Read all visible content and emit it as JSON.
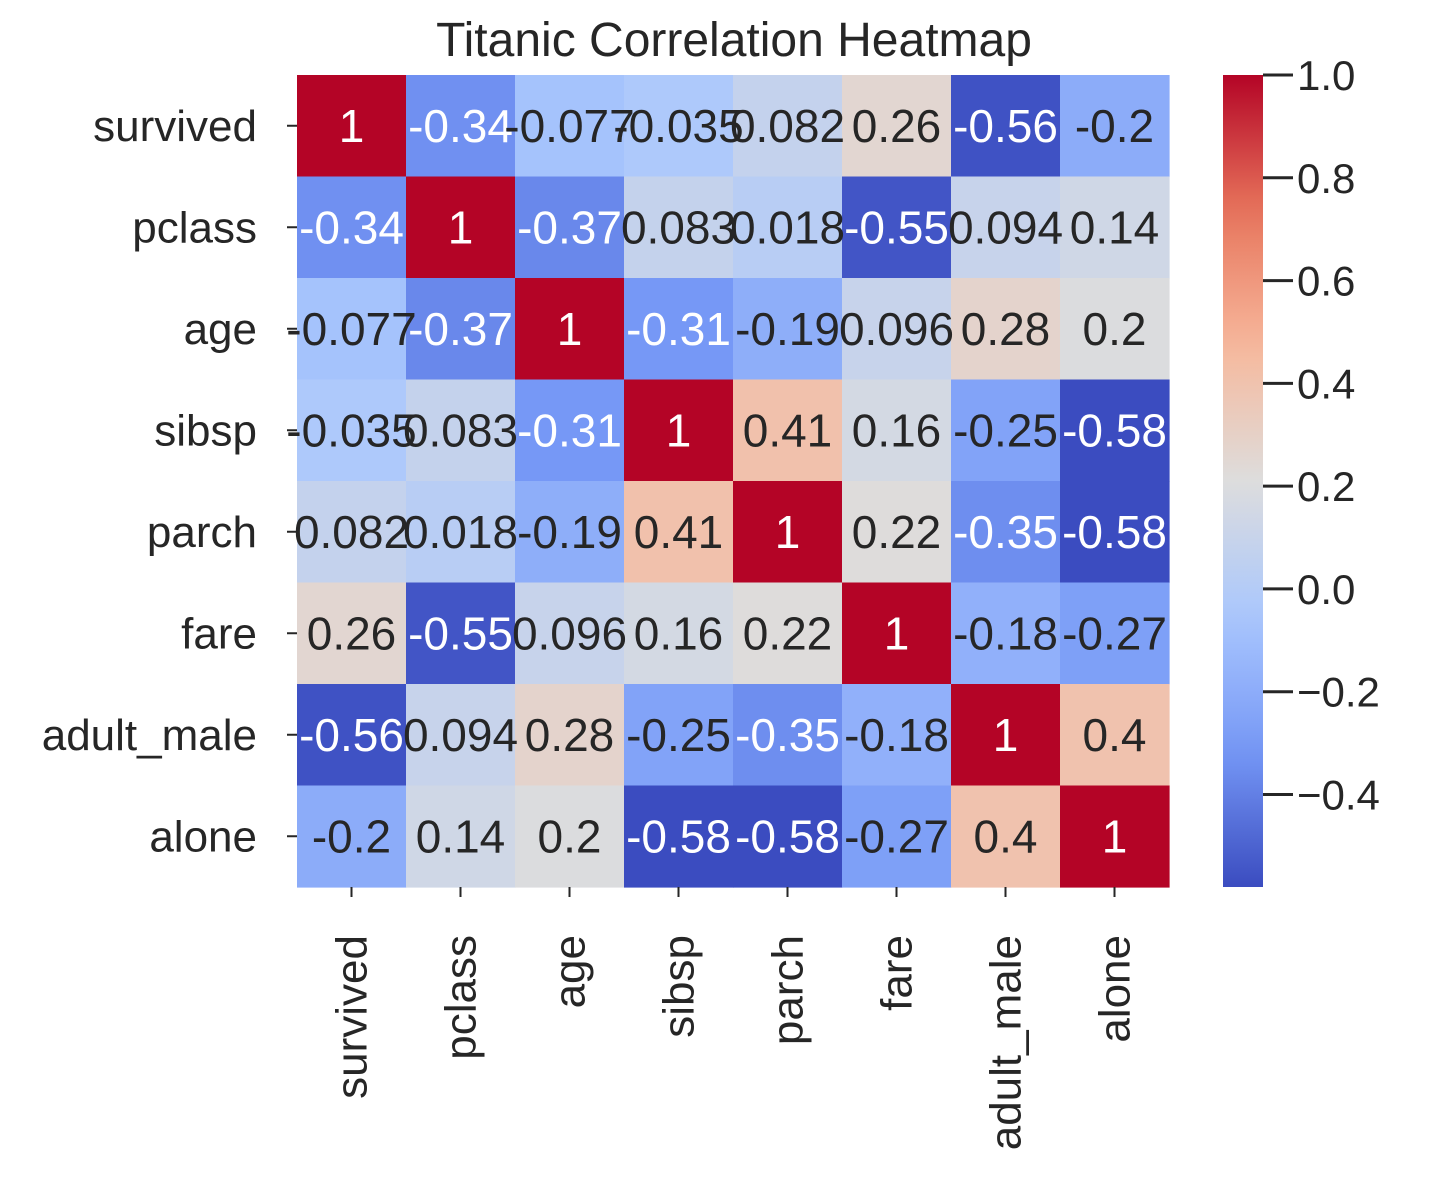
{
  "chart_data": {
    "type": "heatmap",
    "title": "Titanic Correlation Heatmap",
    "xlabel": "",
    "ylabel": "",
    "row_labels": [
      "survived",
      "pclass",
      "age",
      "sibsp",
      "parch",
      "fare",
      "adult_male",
      "alone"
    ],
    "col_labels": [
      "survived",
      "pclass",
      "age",
      "sibsp",
      "parch",
      "fare",
      "adult_male",
      "alone"
    ],
    "values": [
      [
        1,
        -0.34,
        -0.077,
        -0.035,
        0.082,
        0.26,
        -0.56,
        -0.2
      ],
      [
        -0.34,
        1,
        -0.37,
        0.083,
        0.018,
        -0.55,
        0.094,
        0.14
      ],
      [
        -0.077,
        -0.37,
        1,
        -0.31,
        -0.19,
        0.096,
        0.28,
        0.2
      ],
      [
        -0.035,
        0.083,
        -0.31,
        1,
        0.41,
        0.16,
        -0.25,
        -0.58
      ],
      [
        0.082,
        0.018,
        -0.19,
        0.41,
        1,
        0.22,
        -0.35,
        -0.58
      ],
      [
        0.26,
        -0.55,
        0.096,
        0.16,
        0.22,
        1,
        -0.18,
        -0.27
      ],
      [
        -0.56,
        0.094,
        0.28,
        -0.25,
        -0.35,
        -0.18,
        1,
        0.4
      ],
      [
        -0.2,
        0.14,
        0.2,
        -0.58,
        -0.58,
        -0.27,
        0.4,
        1
      ]
    ],
    "annotations": [
      [
        "1",
        "-0.34",
        "-0.077",
        "-0.035",
        "0.082",
        "0.26",
        "-0.56",
        "-0.2"
      ],
      [
        "-0.34",
        "1",
        "-0.37",
        "0.083",
        "0.018",
        "-0.55",
        "0.094",
        "0.14"
      ],
      [
        "-0.077",
        "-0.37",
        "1",
        "-0.31",
        "-0.19",
        "0.096",
        "0.28",
        "0.2"
      ],
      [
        "-0.035",
        "0.083",
        "-0.31",
        "1",
        "0.41",
        "0.16",
        "-0.25",
        "-0.58"
      ],
      [
        "0.082",
        "0.018",
        "-0.19",
        "0.41",
        "1",
        "0.22",
        "-0.35",
        "-0.58"
      ],
      [
        "0.26",
        "-0.55",
        "0.096",
        "0.16",
        "0.22",
        "1",
        "-0.18",
        "-0.27"
      ],
      [
        "-0.56",
        "0.094",
        "0.28",
        "-0.25",
        "-0.35",
        "-0.18",
        "1",
        "0.4"
      ],
      [
        "-0.2",
        "0.14",
        "0.2",
        "-0.58",
        "-0.58",
        "-0.27",
        "0.4",
        "1"
      ]
    ],
    "colormap": "coolwarm",
    "colormap_stops": [
      "#3b4cc0",
      "#7597f6",
      "#aac7fd",
      "#dddddd",
      "#f7b89c",
      "#e7745b",
      "#b40426"
    ],
    "vmin": -0.58,
    "vmax": 1.0,
    "colorbar": {
      "ticks": [
        1.0,
        0.8,
        0.6,
        0.4,
        0.2,
        0.0,
        -0.2,
        -0.4
      ],
      "tick_labels": [
        "1.0",
        "0.8",
        "0.6",
        "0.4",
        "0.2",
        "0.0",
        "−0.2",
        "−0.4"
      ]
    },
    "annot_colors": {
      "dark": "#262626",
      "light": "#ffffff"
    },
    "x_tick_rotation": "vertical",
    "grid": false,
    "legend": "colorbar-right"
  }
}
